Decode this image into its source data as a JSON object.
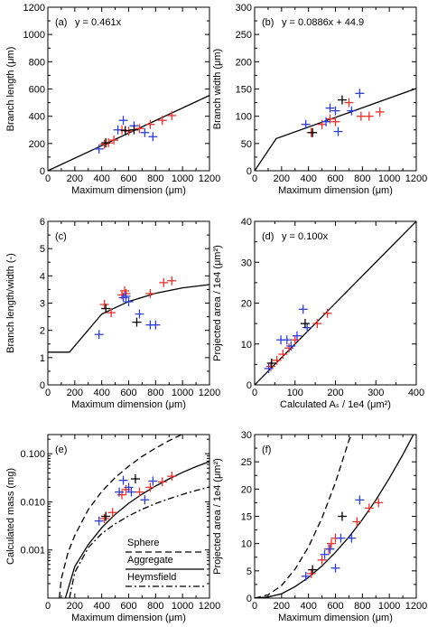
{
  "colors": {
    "red": "#e8322d",
    "blue": "#2e3fd6",
    "black": "#000000",
    "axis": "#000000"
  },
  "chart_data": [
    {
      "type": "scatter",
      "label": "(a)",
      "equation": "y = 0.461x",
      "xlabel": "Maximum dimension (μm)",
      "ylabel": "Branch length (μm)",
      "xlim": [
        0,
        1200
      ],
      "ylim": [
        0,
        1200
      ],
      "xticks": [
        "0",
        "200",
        "400",
        "600",
        "800",
        "1000",
        "1200"
      ],
      "yticks": [
        "0",
        "200",
        "400",
        "600",
        "800",
        "1000",
        "1200"
      ],
      "fit": [
        [
          0,
          0
        ],
        [
          1200,
          553
        ]
      ],
      "series": [
        {
          "color": "red",
          "points": [
            [
              420,
              195
            ],
            [
              450,
              205
            ],
            [
              490,
              225
            ],
            [
              550,
              300
            ],
            [
              600,
              290
            ],
            [
              680,
              310
            ],
            [
              760,
              340
            ],
            [
              850,
              370
            ],
            [
              920,
              405
            ]
          ]
        },
        {
          "color": "blue",
          "points": [
            [
              380,
              160
            ],
            [
              520,
              300
            ],
            [
              560,
              370
            ],
            [
              640,
              330
            ],
            [
              720,
              280
            ],
            [
              780,
              250
            ]
          ]
        },
        {
          "color": "black",
          "points": [
            [
              430,
              205
            ],
            [
              575,
              295
            ],
            [
              640,
              300
            ]
          ]
        }
      ]
    },
    {
      "type": "scatter",
      "label": "(b)",
      "equation": "y = 0.0886x + 44.9",
      "xlabel": "Maximum dimension (μm)",
      "ylabel": "Branch width (μm)",
      "xlim": [
        0,
        1200
      ],
      "ylim": [
        0,
        300
      ],
      "xticks": [
        "0",
        "200",
        "400",
        "600",
        "800",
        "1000",
        "1200"
      ],
      "yticks": [
        "0",
        "50",
        "100",
        "150",
        "200",
        "250",
        "300"
      ],
      "fit": [
        [
          0,
          0
        ],
        [
          160,
          59
        ],
        [
          1200,
          151
        ]
      ],
      "series": [
        {
          "color": "red",
          "points": [
            [
              420,
              70
            ],
            [
              500,
              85
            ],
            [
              560,
              95
            ],
            [
              600,
              90
            ],
            [
              700,
              125
            ],
            [
              790,
              100
            ],
            [
              850,
              100
            ],
            [
              930,
              108
            ]
          ]
        },
        {
          "color": "blue",
          "points": [
            [
              380,
              85
            ],
            [
              530,
              90
            ],
            [
              560,
              115
            ],
            [
              600,
              110
            ],
            [
              620,
              72
            ],
            [
              720,
              110
            ],
            [
              780,
              142
            ]
          ]
        },
        {
          "color": "black",
          "points": [
            [
              430,
              70
            ],
            [
              650,
              130
            ]
          ]
        }
      ]
    },
    {
      "type": "scatter",
      "label": "(c)",
      "equation": "",
      "xlabel": "Maximum dimension (μm)",
      "ylabel": "Branch length/width (-)",
      "xlim": [
        0,
        1200
      ],
      "ylim": [
        0,
        6
      ],
      "xticks": [
        "0",
        "200",
        "400",
        "600",
        "800",
        "1000",
        "1200"
      ],
      "yticks": [
        "0",
        "1",
        "2",
        "3",
        "4",
        "5",
        "6"
      ],
      "fit": [
        [
          0,
          1.2
        ],
        [
          160,
          1.2
        ],
        [
          400,
          2.6
        ],
        [
          600,
          3.06
        ],
        [
          800,
          3.36
        ],
        [
          1000,
          3.56
        ],
        [
          1200,
          3.68
        ]
      ],
      "series": [
        {
          "color": "red",
          "points": [
            [
              420,
              2.95
            ],
            [
              470,
              2.65
            ],
            [
              550,
              3.3
            ],
            [
              570,
              3.45
            ],
            [
              580,
              3.35
            ],
            [
              760,
              3.35
            ],
            [
              860,
              3.75
            ],
            [
              920,
              3.82
            ]
          ]
        },
        {
          "color": "blue",
          "points": [
            [
              380,
              1.85
            ],
            [
              560,
              3.2
            ],
            [
              580,
              3.25
            ],
            [
              600,
              3.05
            ],
            [
              680,
              2.6
            ],
            [
              760,
              2.2
            ],
            [
              800,
              2.2
            ]
          ]
        },
        {
          "color": "black",
          "points": [
            [
              430,
              2.8
            ],
            [
              660,
              2.3
            ]
          ]
        }
      ]
    },
    {
      "type": "scatter",
      "label": "(d)",
      "equation": "y = 0.100x",
      "xlabel": "Calculated Aₛ / 1e4 (μm²)",
      "ylabel": "Projected area / 1e4 (μm²)",
      "xlim": [
        0,
        400
      ],
      "ylim": [
        0,
        40
      ],
      "xticks": [
        "0",
        "100",
        "200",
        "300",
        "400"
      ],
      "yticks": [
        "0",
        "10",
        "20",
        "30",
        "40"
      ],
      "fit": [
        [
          0,
          0
        ],
        [
          400,
          40
        ]
      ],
      "series": [
        {
          "color": "red",
          "points": [
            [
              40,
              4.5
            ],
            [
              55,
              6
            ],
            [
              70,
              7.5
            ],
            [
              85,
              9
            ],
            [
              100,
              11
            ],
            [
              155,
              15
            ],
            [
              180,
              17.5
            ]
          ]
        },
        {
          "color": "blue",
          "points": [
            [
              35,
              4
            ],
            [
              65,
              11
            ],
            [
              80,
              11
            ],
            [
              90,
              9.5
            ],
            [
              105,
              12
            ],
            [
              120,
              18.5
            ],
            [
              130,
              14
            ]
          ]
        },
        {
          "color": "black",
          "points": [
            [
              42,
              5.3
            ],
            [
              125,
              15
            ]
          ]
        }
      ]
    },
    {
      "type": "scatter",
      "label": "(e)",
      "equation": "",
      "xlabel": "Maximum dimension (μm)",
      "ylabel": "Calculated mass (mg)",
      "xlim": [
        0,
        1200
      ],
      "ylim": [
        0.0001,
        0.25
      ],
      "yscale": "log",
      "xticks": [
        "0",
        "200",
        "400",
        "600",
        "800",
        "1000",
        "1200"
      ],
      "yticks": [
        "0.001",
        "0.010",
        "0.100"
      ],
      "legend": [
        "Sphere",
        "Aggregate",
        "Heymsfield"
      ],
      "legend_position": "bottom-right",
      "curves": [
        {
          "style": "dashed",
          "points": [
            [
              85,
              0.0001
            ],
            [
              100,
              0.00025
            ],
            [
              150,
              0.0009
            ],
            [
              200,
              0.002
            ],
            [
              300,
              0.0069
            ],
            [
              400,
              0.0164
            ],
            [
              500,
              0.032
            ],
            [
              600,
              0.055
            ],
            [
              700,
              0.088
            ],
            [
              800,
              0.131
            ],
            [
              900,
              0.187
            ],
            [
              1000,
              0.256
            ]
          ]
        },
        {
          "style": "solid",
          "points": [
            [
              130,
              0.0001
            ],
            [
              200,
              0.00045
            ],
            [
              300,
              0.0013
            ],
            [
              400,
              0.0029
            ],
            [
              500,
              0.0055
            ],
            [
              600,
              0.0093
            ],
            [
              700,
              0.0145
            ],
            [
              800,
              0.0213
            ],
            [
              900,
              0.03
            ],
            [
              1000,
              0.041
            ],
            [
              1100,
              0.054
            ],
            [
              1200,
              0.069
            ]
          ]
        },
        {
          "style": "dashdot",
          "points": [
            [
              160,
              0.0001
            ],
            [
              200,
              0.00034
            ],
            [
              300,
              0.00112
            ],
            [
              400,
              0.0022
            ],
            [
              500,
              0.0035
            ],
            [
              600,
              0.0051
            ],
            [
              700,
              0.007
            ],
            [
              800,
              0.0092
            ],
            [
              900,
              0.0116
            ],
            [
              1000,
              0.0143
            ],
            [
              1100,
              0.0172
            ],
            [
              1200,
              0.0204
            ]
          ]
        }
      ],
      "series": [
        {
          "color": "red",
          "points": [
            [
              420,
              0.0045
            ],
            [
              480,
              0.006
            ],
            [
              550,
              0.014
            ],
            [
              580,
              0.018
            ],
            [
              680,
              0.016
            ],
            [
              760,
              0.02
            ],
            [
              850,
              0.026
            ],
            [
              920,
              0.034
            ]
          ]
        },
        {
          "color": "blue",
          "points": [
            [
              380,
              0.004
            ],
            [
              530,
              0.016
            ],
            [
              560,
              0.028
            ],
            [
              600,
              0.02
            ],
            [
              620,
              0.016
            ],
            [
              720,
              0.011
            ],
            [
              780,
              0.027
            ]
          ]
        },
        {
          "color": "black",
          "points": [
            [
              430,
              0.005
            ],
            [
              650,
              0.03
            ]
          ]
        }
      ]
    },
    {
      "type": "scatter",
      "label": "(f)",
      "equation": "",
      "xlabel": "Maximum dimension (μm)",
      "ylabel": "Projected area / 1e4 (μm²)",
      "xlim": [
        0,
        1200
      ],
      "ylim": [
        0,
        30
      ],
      "xticks": [
        "0",
        "200",
        "400",
        "600",
        "800",
        "1000",
        "1200"
      ],
      "yticks": [
        "0",
        "5",
        "10",
        "15",
        "20",
        "25",
        "30"
      ],
      "curves": [
        {
          "style": "dashed",
          "points": [
            [
              0,
              0
            ],
            [
              100,
              0.6
            ],
            [
              200,
              2.3
            ],
            [
              300,
              5.3
            ],
            [
              400,
              9.4
            ],
            [
              500,
              14.7
            ],
            [
              600,
              21.2
            ],
            [
              700,
              28.9
            ],
            [
              720,
              30
            ]
          ]
        },
        {
          "style": "solid",
          "points": [
            [
              0,
              0
            ],
            [
              100,
              0.2
            ],
            [
              200,
              0.8
            ],
            [
              300,
              2.1
            ],
            [
              400,
              3.8
            ],
            [
              500,
              5.9
            ],
            [
              600,
              8.4
            ],
            [
              700,
              11.2
            ],
            [
              800,
              14.4
            ],
            [
              900,
              18.0
            ],
            [
              1000,
              22.0
            ],
            [
              1100,
              26.3
            ],
            [
              1200,
              31
            ]
          ]
        }
      ],
      "series": [
        {
          "color": "red",
          "points": [
            [
              420,
              4.5
            ],
            [
              500,
              7
            ],
            [
              550,
              9
            ],
            [
              570,
              10
            ],
            [
              600,
              11
            ],
            [
              760,
              14
            ],
            [
              850,
              16.5
            ],
            [
              920,
              17.5
            ]
          ]
        },
        {
          "color": "blue",
          "points": [
            [
              380,
              4
            ],
            [
              520,
              8
            ],
            [
              560,
              9
            ],
            [
              600,
              5.5
            ],
            [
              640,
              11
            ],
            [
              720,
              11
            ],
            [
              780,
              18
            ]
          ]
        },
        {
          "color": "black",
          "points": [
            [
              430,
              5.2
            ],
            [
              650,
              15
            ]
          ]
        }
      ]
    }
  ]
}
